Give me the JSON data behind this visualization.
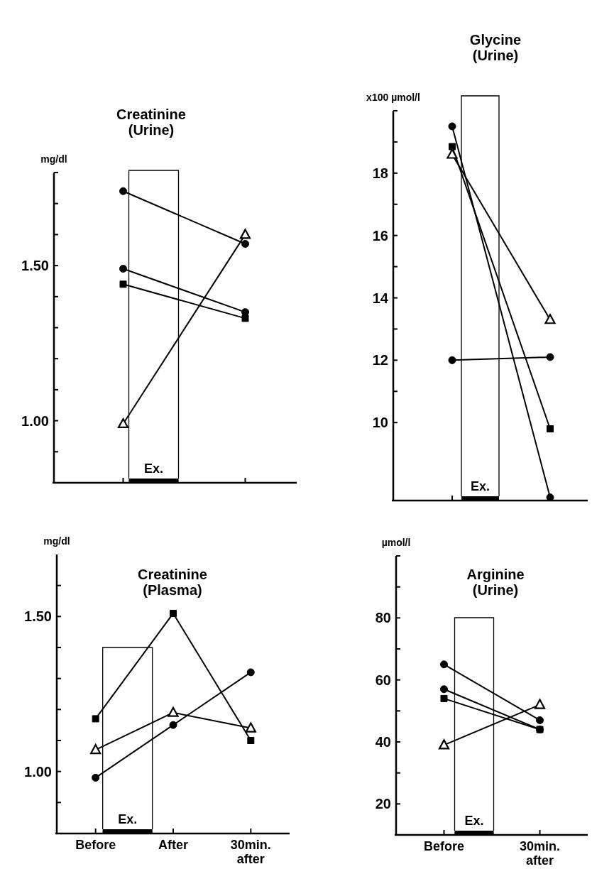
{
  "chart_data": [
    {
      "type": "line",
      "title": "Creatinine\n(Urine)",
      "ylabel": "mg/dl",
      "categories": [
        null,
        null
      ],
      "tick_labels": "y",
      "ylim": [
        0.8,
        1.8
      ],
      "yticks": [
        {
          "value": 0.9,
          "label": null
        },
        {
          "value": 1.0,
          "label": "1.00"
        },
        {
          "value": 1.1,
          "label": null
        },
        {
          "value": 1.2,
          "label": null
        },
        {
          "value": 1.3,
          "label": null
        },
        {
          "value": 1.4,
          "label": null
        },
        {
          "value": 1.5,
          "label": "1.50"
        },
        {
          "value": 1.6,
          "label": null
        },
        {
          "value": 1.7,
          "label": null
        },
        {
          "value": 1.8,
          "label": null
        }
      ],
      "annotations": [
        "Ex."
      ],
      "series": [
        {
          "color": "#000000",
          "marker": "circle",
          "values": [
            1.74,
            1.57
          ]
        },
        {
          "color": "#000000",
          "marker": "circle",
          "values": [
            1.49,
            1.35
          ]
        },
        {
          "color": "#000000",
          "marker": "square",
          "values": [
            1.44,
            1.33
          ]
        },
        {
          "color": "#000000",
          "marker": "triangle",
          "values": [
            0.99,
            1.6
          ]
        }
      ]
    },
    {
      "type": "line",
      "title": "Glycine\n(Urine)",
      "ylabel": "x100 µmol/l",
      "categories": [
        null,
        null
      ],
      "tick_labels": "y",
      "ylim": [
        7.5,
        20
      ],
      "yticks": [
        10,
        {
          "value": 11,
          "label": null
        },
        12,
        {
          "value": 13,
          "label": null
        },
        14,
        {
          "value": 15,
          "label": null
        },
        16,
        {
          "value": 17,
          "label": null
        },
        18,
        {
          "value": 19,
          "label": null
        },
        {
          "value": 20,
          "label": null
        }
      ],
      "annotations": [
        "Ex."
      ],
      "series": [
        {
          "color": "#000000",
          "marker": "circle",
          "values": [
            19.5,
            7.6
          ]
        },
        {
          "color": "#000000",
          "marker": "circle",
          "values": [
            12.0,
            12.1
          ]
        },
        {
          "color": "#000000",
          "marker": "square",
          "values": [
            18.85,
            9.8
          ]
        },
        {
          "color": "#000000",
          "marker": "triangle",
          "values": [
            18.6,
            13.3
          ]
        }
      ]
    },
    {
      "type": "line",
      "title": "Creatinine\n(Plasma)",
      "ylabel": "mg/dl",
      "categories": [
        "Before",
        "After",
        "30min.\nafter"
      ],
      "ylim": [
        0.8,
        1.7
      ],
      "yticks": [
        {
          "value": 0.9,
          "label": null
        },
        {
          "value": 1.0,
          "label": "1.00"
        },
        {
          "value": 1.1,
          "label": null
        },
        {
          "value": 1.2,
          "label": null
        },
        {
          "value": 1.3,
          "label": null
        },
        {
          "value": 1.4,
          "label": null
        },
        {
          "value": 1.5,
          "label": "1.50"
        },
        {
          "value": 1.6,
          "label": null
        }
      ],
      "annotations": [
        "Ex."
      ],
      "series": [
        {
          "color": "#000000",
          "marker": "circle",
          "values": [
            0.98,
            1.15,
            1.32
          ]
        },
        {
          "color": "#000000",
          "marker": "square",
          "values": [
            1.17,
            1.51,
            1.1
          ]
        },
        {
          "color": "#000000",
          "marker": "triangle",
          "values": [
            1.07,
            1.19,
            1.14
          ]
        }
      ]
    },
    {
      "type": "line",
      "title": "Arginine\n(Urine)",
      "ylabel": "µmol/l",
      "categories": [
        "Before",
        "30min.\nafter"
      ],
      "ylim": [
        10,
        100
      ],
      "yticks": [
        20,
        {
          "value": 30,
          "label": null
        },
        40,
        {
          "value": 50,
          "label": null
        },
        60,
        {
          "value": 70,
          "label": null
        },
        80,
        {
          "value": 90,
          "label": null
        },
        {
          "value": 100,
          "label": null
        }
      ],
      "annotations": [
        "Ex."
      ],
      "series": [
        {
          "color": "#000000",
          "marker": "circle",
          "values": [
            65,
            47
          ]
        },
        {
          "color": "#000000",
          "marker": "circle",
          "values": [
            57,
            44
          ]
        },
        {
          "color": "#000000",
          "marker": "square",
          "values": [
            54,
            44
          ]
        },
        {
          "color": "#000000",
          "marker": "triangle",
          "values": [
            39,
            52
          ]
        }
      ]
    }
  ]
}
